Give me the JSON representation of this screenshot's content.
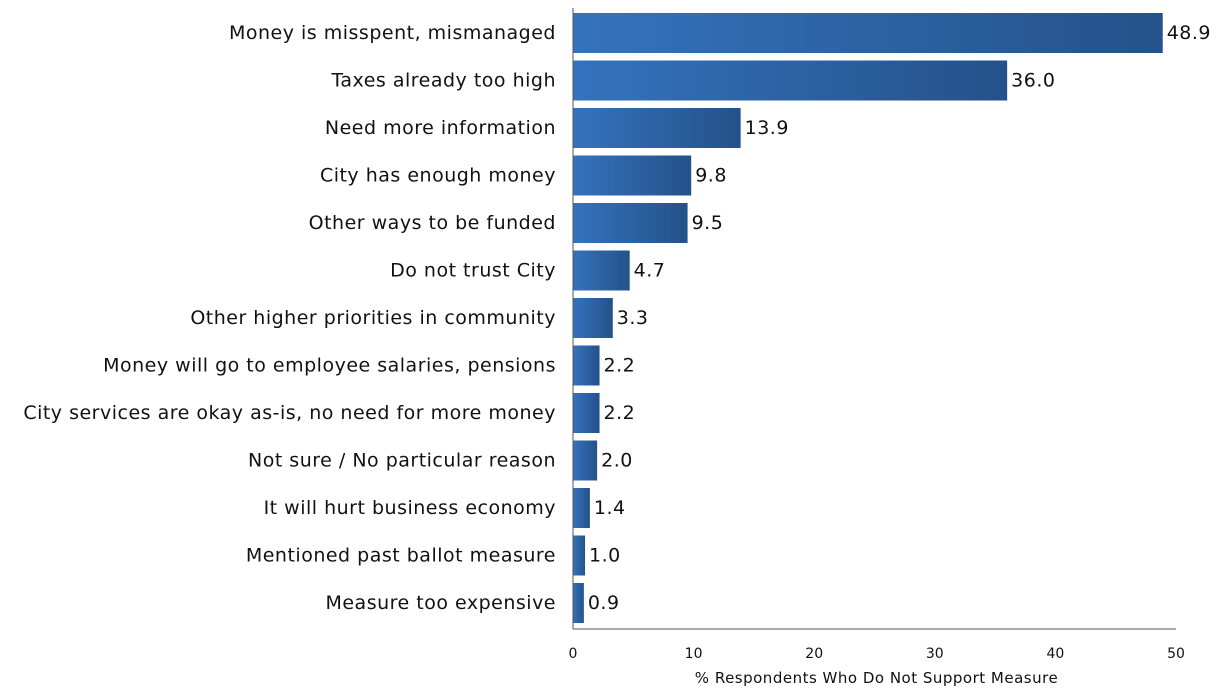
{
  "chart_data": {
    "type": "bar",
    "orientation": "horizontal",
    "categories": [
      "Money is misspent, mismanaged",
      "Taxes already too high",
      "Need more information",
      "City has enough money",
      "Other ways to be funded",
      "Do not trust City",
      "Other higher priorities in community",
      "Money will go to employee salaries, pensions",
      "City services are okay as-is, no need for more money",
      "Not sure / No particular reason",
      "It will hurt business economy",
      "Mentioned past ballot measure",
      "Measure too expensive"
    ],
    "values": [
      48.9,
      36.0,
      13.9,
      9.8,
      9.5,
      4.7,
      3.3,
      2.2,
      2.2,
      2.0,
      1.4,
      1.0,
      0.9
    ],
    "value_labels": [
      "48.9",
      "36.0",
      "13.9",
      "9.8",
      "9.5",
      "4.7",
      "3.3",
      "2.2",
      "2.2",
      "2.0",
      "1.4",
      "1.0",
      "0.9"
    ],
    "xlabel": "% Respondents Who Do Not Support Measure",
    "ylabel": "",
    "xlim": [
      0,
      50
    ],
    "xticks": [
      "0",
      "10",
      "20",
      "30",
      "40",
      "50"
    ],
    "grid": false,
    "bar_color_start": "#3572bd",
    "bar_color_end": "#24528a"
  }
}
